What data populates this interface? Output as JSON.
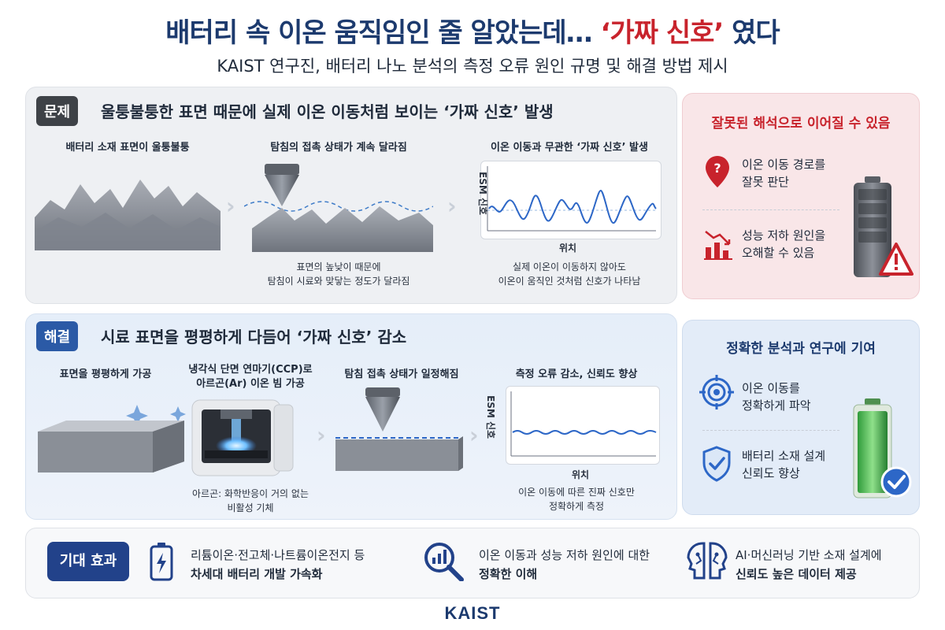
{
  "header": {
    "title_part1": "배터리 속 이온 움직임인 줄 알았는데… ",
    "title_highlight": "‘가짜 신호’",
    "title_part2": " 였다",
    "subtitle": "KAIST 연구진, 배터리 나노 분석의 측정 오류 원인 규명 및 해결 방법 제시"
  },
  "problem": {
    "badge": "문제",
    "heading": "울퉁불퉁한 표면 때문에 실제 이온 이동처럼 보이는 ‘가짜 신호’ 발생",
    "step1_caption": "배터리 소재 표면이 울퉁불퉁",
    "step2_caption": "탐침의 접촉 상태가 계속 달라짐",
    "step2_note_line1": "표면의 높낮이 때문에",
    "step2_note_line2": "탐침이 시료와 맞닿는 정도가 달라짐",
    "step3_caption": "이온 이동과 무관한 ‘가짜 신호’ 발생",
    "step3_note_line1": "실제 이온이 이동하지 않아도",
    "step3_note_line2": "이온이 움직인 것처럼 신호가 나타남",
    "chart_ylabel": "ESM 신호",
    "chart_xlabel": "위치"
  },
  "problem_side": {
    "title": "잘못된 해석으로 이어질 수 있음",
    "item1_line1": "이온 이동 경로를",
    "item1_line2": "잘못 판단",
    "item2_line1": "성능 저하 원인을",
    "item2_line2": "오해할 수 있음",
    "title_color": "#c8232c"
  },
  "solution": {
    "badge": "해결",
    "heading": "시료 표면을 평평하게 다듬어 ‘가짜 신호’ 감소",
    "step1_caption": "표면을 평평하게 가공",
    "step2_caption_line1": "냉각식 단면 연마기(CCP)로",
    "step2_caption_line2": "아르곤(Ar) 이온 빔 가공",
    "step2_note_line1": "아르곤: 화학반응이 거의 없는",
    "step2_note_line2": "비활성 기체",
    "step3_caption": "탐침 접촉 상태가 일정해짐",
    "step4_caption": "측정 오류 감소, 신뢰도 향상",
    "step4_note_line1": "이온 이동에 따른 진짜 신호만",
    "step4_note_line2": "정확하게 측정",
    "chart_ylabel": "ESM 신호",
    "chart_xlabel": "위치"
  },
  "solution_side": {
    "title": "정확한 분석과 연구에 기여",
    "item1_line1": "이온 이동를",
    "item1_line2": "정확하게 파악",
    "item2_line1": "배터리 소재 설계",
    "item2_line2": "신뢰도 향상",
    "title_color": "#1c3a6e"
  },
  "effects": {
    "badge": "기대 효과",
    "item1_line1": "리튬이온·전고체·나트륨이온전지 등",
    "item1_line2": "차세대 배터리 개발 가속화",
    "item2_line1": "이온 이동과 성능 저하 원인에 대한",
    "item2_line2": "정확한 이해",
    "item3_line1": "AI·머신러닝 기반 소재 설계에",
    "item3_line2": "신뢰도 높은 데이터 제공"
  },
  "footer": {
    "logo": "KAIST"
  },
  "icons": {
    "question_pin": "question-pin-icon",
    "declining_chart": "declining-chart-icon",
    "warning": "warning-icon",
    "target": "target-icon",
    "shield_check": "shield-check-icon",
    "check_circle": "check-circle-icon",
    "battery_bolt": "battery-bolt-icon",
    "magnifier_chart": "magnifier-chart-icon",
    "ai_heads": "ai-heads-icon"
  }
}
